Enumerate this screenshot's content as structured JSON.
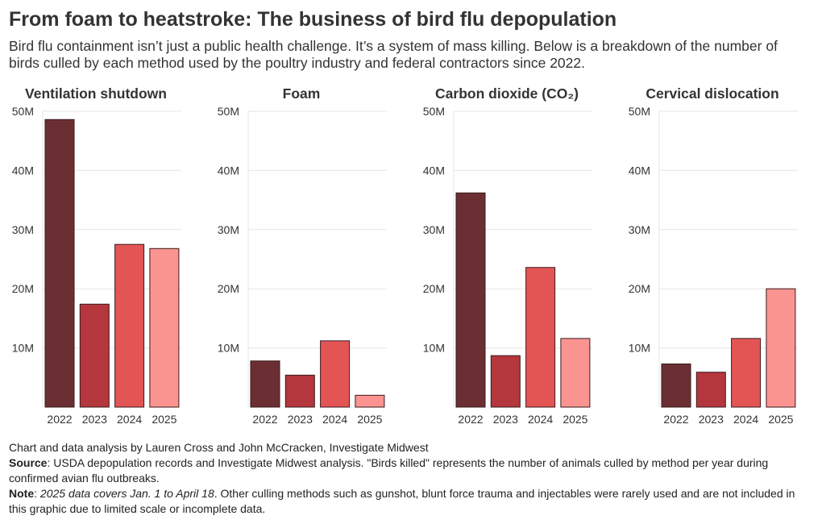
{
  "title": "From foam to heatstroke: The business of bird flu depopulation",
  "subtitle": "Bird flu containment isn’t just a public health challenge. It’s a system of mass killing. Below is a breakdown of the number of birds culled by each method used by the poultry industry and federal contractors since 2022.",
  "colors": {
    "2022": "#6b2f33",
    "2023": "#b3373d",
    "2024": "#e35555",
    "2025": "#fa9490"
  },
  "chart_data": [
    {
      "type": "bar",
      "title": "Ventilation shutdown",
      "categories": [
        "2022",
        "2023",
        "2024",
        "2025"
      ],
      "values": [
        48600000,
        17400000,
        27500000,
        26800000
      ],
      "ylim": [
        0,
        50000000
      ],
      "yticks": [
        "10M",
        "20M",
        "30M",
        "40M",
        "50M"
      ]
    },
    {
      "type": "bar",
      "title": "Foam",
      "categories": [
        "2022",
        "2023",
        "2024",
        "2025"
      ],
      "values": [
        7800000,
        5400000,
        11200000,
        2000000
      ],
      "ylim": [
        0,
        50000000
      ],
      "yticks": [
        "10M",
        "20M",
        "30M",
        "40M",
        "50M"
      ]
    },
    {
      "type": "bar",
      "title": "Carbon dioxide (CO₂)",
      "categories": [
        "2022",
        "2023",
        "2024",
        "2025"
      ],
      "values": [
        36200000,
        8700000,
        23600000,
        11600000
      ],
      "ylim": [
        0,
        50000000
      ],
      "yticks": [
        "10M",
        "20M",
        "30M",
        "40M",
        "50M"
      ]
    },
    {
      "type": "bar",
      "title": "Cervical dislocation",
      "categories": [
        "2022",
        "2023",
        "2024",
        "2025"
      ],
      "values": [
        7300000,
        5900000,
        11600000,
        20000000
      ],
      "ylim": [
        0,
        50000000
      ],
      "yticks": [
        "10M",
        "20M",
        "30M",
        "40M",
        "50M"
      ]
    }
  ],
  "footer": {
    "credit": "Chart and data analysis by Lauren Cross and John McCracken, Investigate Midwest",
    "source_label": "Source",
    "source_text": ": USDA depopulation records and Investigate Midwest analysis. \"Birds killed\" represents the number of animals culled by method per year during confirmed avian flu outbreaks.",
    "note_label": "Note",
    "note_sep": ": ",
    "note_italic": "2025 data covers Jan. 1 to April 18",
    "note_text": ". Other culling methods such as gunshot, blunt force trauma and injectables were rarely used and are not included in this graphic due to limited scale or incomplete data."
  }
}
